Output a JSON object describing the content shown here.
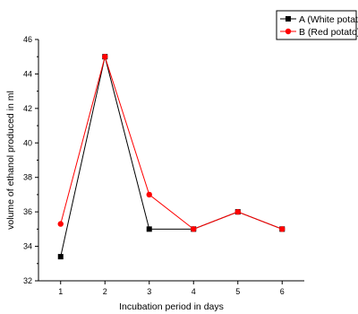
{
  "chart_data": {
    "type": "line",
    "title": "",
    "xlabel": "Incubation period in days",
    "ylabel": "volume of ethanol produced in ml",
    "x": [
      1,
      2,
      3,
      4,
      5,
      6
    ],
    "xlim": [
      0.5,
      6.5
    ],
    "ylim": [
      32,
      46
    ],
    "xticks": [
      "1",
      "2",
      "3",
      "4",
      "5",
      "6"
    ],
    "yticks": [
      "32",
      "34",
      "36",
      "38",
      "40",
      "42",
      "44",
      "46"
    ],
    "grid": false,
    "legend_position": "top-right",
    "series": [
      {
        "name": "A (White potato)",
        "color": "#000000",
        "marker": "square",
        "values": [
          33.4,
          45.0,
          35.0,
          35.0,
          36.0,
          35.0
        ]
      },
      {
        "name": "B (Red potato)",
        "color": "#ff0000",
        "marker": "circle",
        "values": [
          35.3,
          45.0,
          37.0,
          35.0,
          36.0,
          35.0
        ]
      }
    ]
  }
}
